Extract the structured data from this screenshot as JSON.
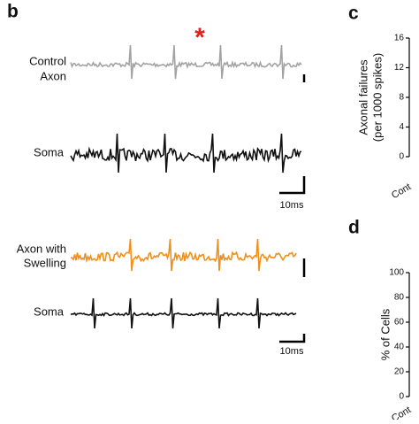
{
  "panels": {
    "b": {
      "label": "b",
      "control": {
        "trace_label": [
          "Control",
          "Axon"
        ],
        "soma_label": "Soma",
        "scale_label": "10ms"
      },
      "swelling": {
        "trace_label": [
          "Axon with",
          "Swelling"
        ],
        "soma_label": "Soma",
        "scale_label": "10ms"
      },
      "marker": "*"
    },
    "c": {
      "label": "c",
      "ylabel": [
        "Axonal failures",
        "(per 1000 spikes)"
      ],
      "yticks": [
        0,
        4,
        8,
        12,
        16
      ],
      "ylim": [
        0,
        16
      ],
      "xlabel": "Cont"
    },
    "d": {
      "label": "d",
      "ylabel": "% of Cells",
      "yticks": [
        0,
        20,
        40,
        60,
        80,
        100
      ],
      "ylim": [
        0,
        100
      ],
      "xlabel": "Cont"
    }
  }
}
